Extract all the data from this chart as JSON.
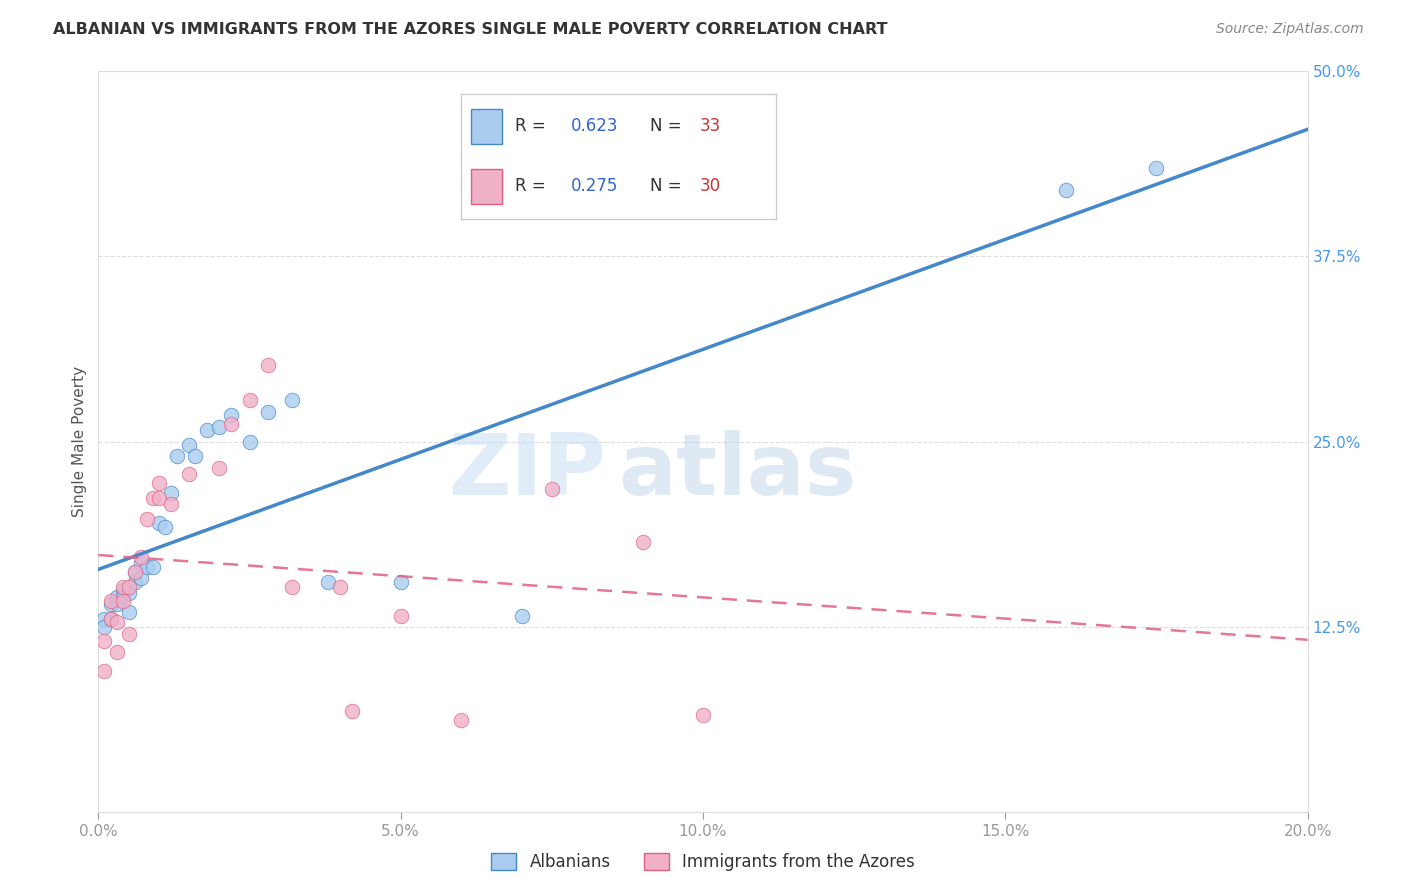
{
  "title": "ALBANIAN VS IMMIGRANTS FROM THE AZORES SINGLE MALE POVERTY CORRELATION CHART",
  "source": "Source: ZipAtlas.com",
  "ylabel": "Single Male Poverty",
  "xlim": [
    0.0,
    0.2
  ],
  "ylim": [
    0.0,
    0.5
  ],
  "xtick_vals": [
    0.0,
    0.05,
    0.1,
    0.15,
    0.2
  ],
  "ytick_vals": [
    0.125,
    0.25,
    0.375,
    0.5
  ],
  "albanians_color": "#aaccee",
  "azores_color": "#f0b0c8",
  "line_albanian_color": "#4488cc",
  "line_azores_color": "#e06080",
  "R_albanian": "0.623",
  "N_albanian": "33",
  "R_azores": "0.275",
  "N_azores": "30",
  "legend_label1": "Albanians",
  "legend_label2": "Immigrants from the Azores",
  "watermark_zip": "ZIP",
  "watermark_atlas": "atlas",
  "albanians_x": [
    0.001,
    0.001,
    0.002,
    0.002,
    0.003,
    0.003,
    0.004,
    0.004,
    0.005,
    0.005,
    0.006,
    0.006,
    0.007,
    0.007,
    0.008,
    0.009,
    0.01,
    0.011,
    0.012,
    0.013,
    0.015,
    0.016,
    0.018,
    0.02,
    0.022,
    0.025,
    0.028,
    0.032,
    0.038,
    0.05,
    0.07,
    0.16,
    0.175
  ],
  "albanians_y": [
    0.13,
    0.125,
    0.14,
    0.13,
    0.145,
    0.14,
    0.15,
    0.145,
    0.135,
    0.148,
    0.155,
    0.162,
    0.168,
    0.158,
    0.165,
    0.165,
    0.195,
    0.192,
    0.215,
    0.24,
    0.248,
    0.24,
    0.258,
    0.26,
    0.268,
    0.25,
    0.27,
    0.278,
    0.155,
    0.155,
    0.132,
    0.42,
    0.435
  ],
  "azores_x": [
    0.001,
    0.001,
    0.002,
    0.002,
    0.003,
    0.003,
    0.004,
    0.004,
    0.005,
    0.005,
    0.006,
    0.007,
    0.008,
    0.009,
    0.01,
    0.01,
    0.012,
    0.015,
    0.02,
    0.022,
    0.025,
    0.028,
    0.032,
    0.04,
    0.042,
    0.05,
    0.06,
    0.075,
    0.09,
    0.1
  ],
  "azores_y": [
    0.095,
    0.115,
    0.13,
    0.142,
    0.108,
    0.128,
    0.142,
    0.152,
    0.12,
    0.152,
    0.162,
    0.172,
    0.198,
    0.212,
    0.212,
    0.222,
    0.208,
    0.228,
    0.232,
    0.262,
    0.278,
    0.302,
    0.152,
    0.152,
    0.068,
    0.132,
    0.062,
    0.218,
    0.182,
    0.065
  ],
  "grid_color": "#dddddd",
  "tick_color": "#999999",
  "ytick_label_color": "#4499ee",
  "title_color": "#333333",
  "source_color": "#888888",
  "ylabel_color": "#555555"
}
